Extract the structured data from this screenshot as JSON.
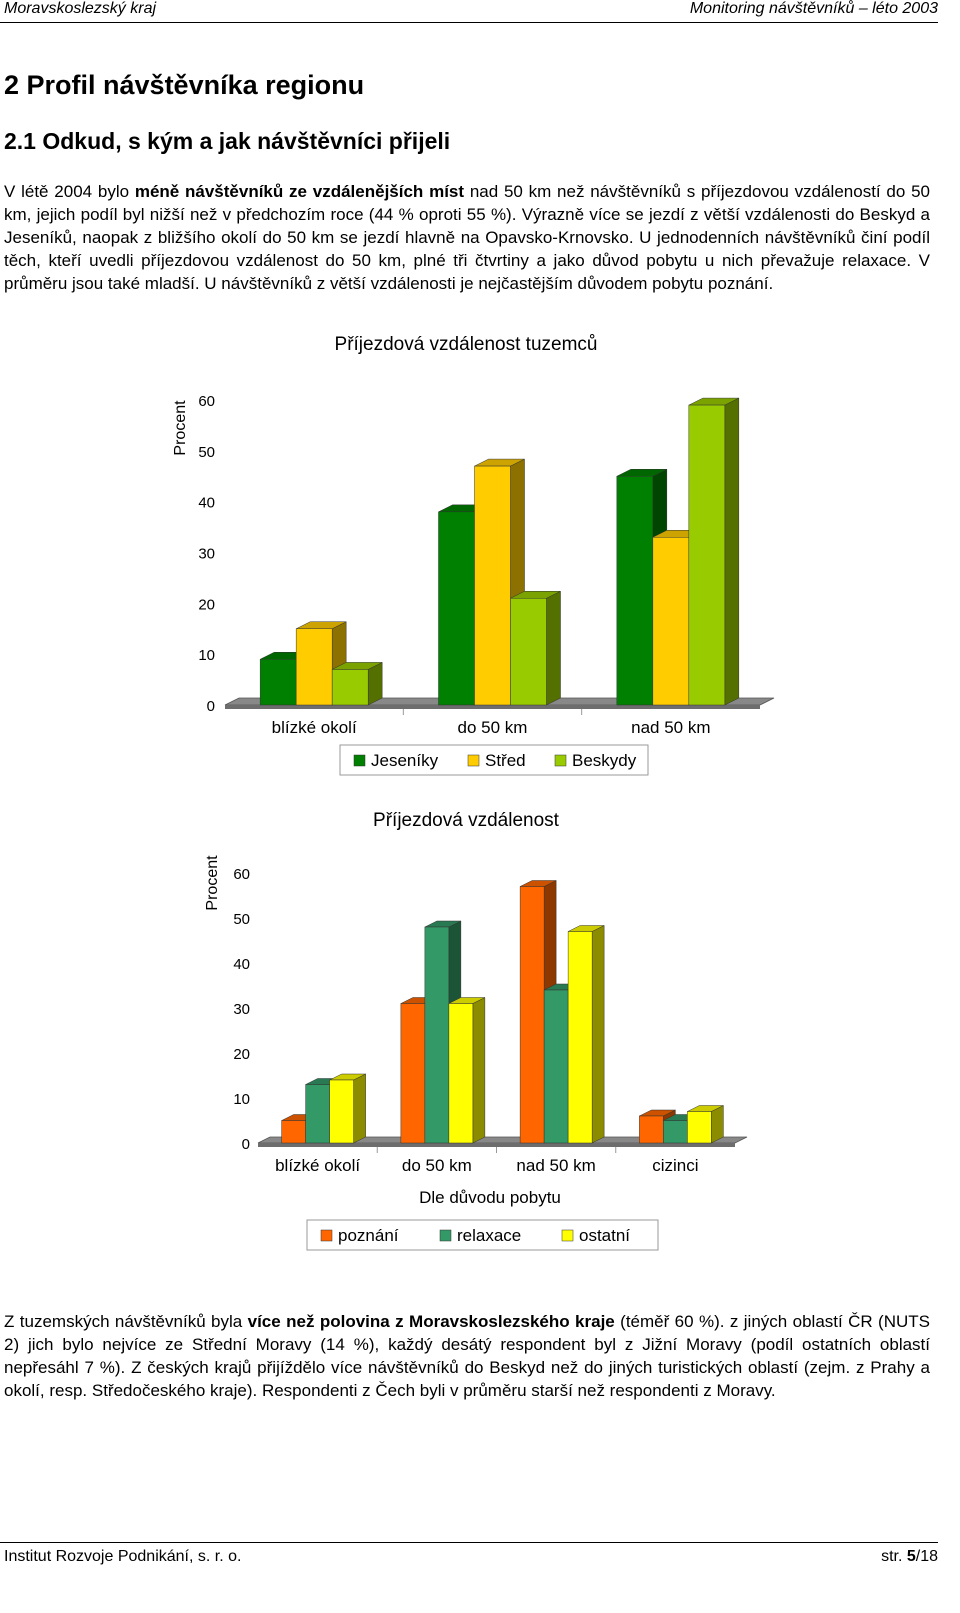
{
  "header": {
    "left": "Moravskoslezský kraj",
    "right": "Monitoring návštěvníků – léto 2003"
  },
  "heading1": "2  Profil návštěvníka regionu",
  "heading2": "2.1  Odkud, s kým a jak návštěvníci přijeli",
  "paragraph1": {
    "pre": "V létě 2004 bylo ",
    "bold": "méně návštěvníků ze vzdálenějších míst",
    "post": " nad 50 km než návštěvníků s příjezdovou vzdáleností do 50 km, jejich podíl byl nižší než v předchozím roce (44 % oproti 55 %). Výrazně více se jezdí z větší vzdálenosti do Beskyd a Jeseníků, naopak z bližšího okolí do 50 km se jezdí hlavně na Opavsko-Krnovsko. U jednodenních návštěvníků činí podíl těch, kteří uvedli příjezdovou vzdálenost do 50 km, plné tři čtvrtiny a jako důvod pobytu u nich převažuje relaxace. V průměru jsou také mladší. U návštěvníků z větší vzdálenosti je nejčastějším důvodem pobytu poznání."
  },
  "paragraph2": {
    "pre": "Z tuzemských návštěvníků byla ",
    "bold": "více než polovina z Moravskoslezského kraje",
    "post": " (téměř 60 %). z jiných oblastí ČR (NUTS 2) jich bylo nejvíce ze Střední Moravy (14 %), každý desátý respondent byl z Jižní Moravy (podíl ostatních oblastí nepřesáhl 7 %). Z českých krajů přijíždělo více návštěvníků do Beskyd než do jiných turistických oblastí (zejm. z Prahy a okolí, resp. Středočeského kraje). Respondenti z Čech byli v průměru starší než respondenti z Moravy."
  },
  "chart_data": [
    {
      "type": "bar",
      "title": "Příjezdová vzdálenost tuzemců",
      "ylabel": "Procent",
      "xlabel": "",
      "ylim": [
        0,
        60
      ],
      "yticks": [
        0,
        10,
        20,
        30,
        40,
        50,
        60
      ],
      "categories": [
        "blízké okolí",
        "do 50 km",
        "nad 50 km"
      ],
      "series": [
        {
          "name": "Jeseníky",
          "values": [
            9,
            38,
            45
          ],
          "color": "#008000"
        },
        {
          "name": "Střed",
          "values": [
            15,
            47,
            33
          ],
          "color": "#ffcc00"
        },
        {
          "name": "Beskydy",
          "values": [
            7,
            21,
            59
          ],
          "color": "#99cc00"
        }
      ],
      "legend": "bottom"
    },
    {
      "type": "bar",
      "title": "Příjezdová vzdálenost",
      "ylabel": "Procent",
      "xlabel": "Dle důvodu pobytu",
      "ylim": [
        0,
        60
      ],
      "yticks": [
        0,
        10,
        20,
        30,
        40,
        50,
        60
      ],
      "categories": [
        "blízké okolí",
        "do 50 km",
        "nad 50 km",
        "cizinci"
      ],
      "series": [
        {
          "name": "poznání",
          "values": [
            5,
            31,
            57,
            6
          ],
          "color": "#ff6600"
        },
        {
          "name": "relaxace",
          "values": [
            13,
            48,
            34,
            5
          ],
          "color": "#339966"
        },
        {
          "name": "ostatní",
          "values": [
            14,
            31,
            47,
            7
          ],
          "color": "#ffff00"
        }
      ],
      "legend": "bottom"
    }
  ],
  "footer": {
    "left": "Institut Rozvoje Podnikání, s. r. o.",
    "right_prefix": "str. ",
    "page": "5",
    "total": "/18"
  }
}
